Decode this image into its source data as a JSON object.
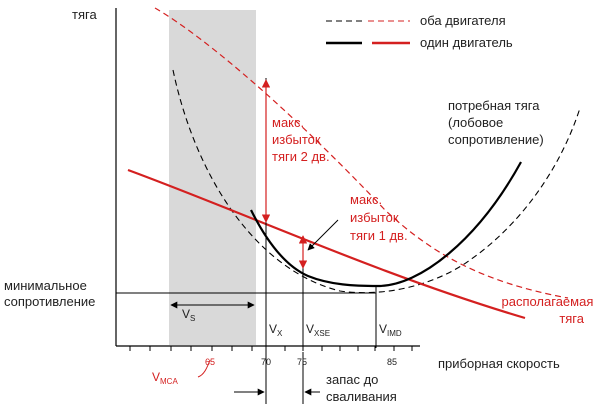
{
  "axes": {
    "y_label": "тяга",
    "x_label": "приборная скорость"
  },
  "legend": {
    "both_engines": "оба двигателя",
    "one_engine": "один двигатель"
  },
  "annotations": {
    "max_excess_2": [
      "макс.",
      "избыток",
      "тяги 2 дв."
    ],
    "max_excess_1": [
      "макс.",
      "избыток",
      "тяги 1 дв."
    ],
    "required_thrust": [
      "потребная тяга",
      "(лобовое",
      "сопротивление)"
    ],
    "available_thrust": [
      "располагаемая",
      "тяга"
    ],
    "min_drag": [
      "минимальное",
      "сопротивление"
    ],
    "stall_margin": [
      "запас до",
      "сваливания"
    ]
  },
  "speeds": {
    "vs": {
      "main": "V",
      "sub": "S"
    },
    "vx": {
      "main": "V",
      "sub": "X"
    },
    "vxse": {
      "main": "V",
      "sub": "XSE"
    },
    "vimd": {
      "main": "V",
      "sub": "IMD"
    },
    "vmca": {
      "main": "V",
      "sub": "MCA"
    }
  },
  "ticks": {
    "t65": "65",
    "t70": "70",
    "t75": "75",
    "t85": "85"
  },
  "colors": {
    "red": "#d42020",
    "black": "#000000",
    "stall_band": "#d9d9d9"
  }
}
